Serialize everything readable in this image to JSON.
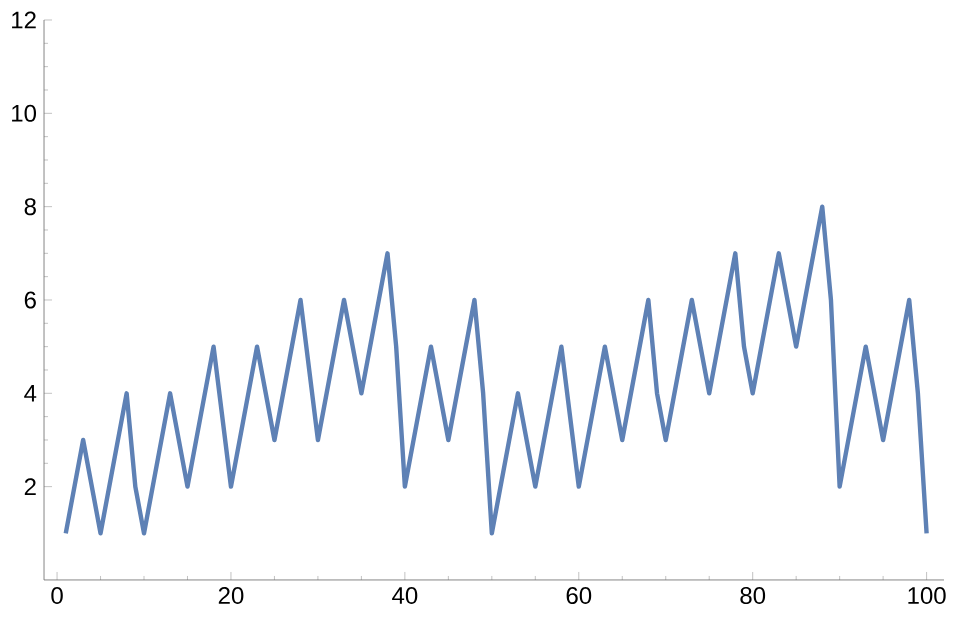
{
  "chart_data": {
    "type": "line",
    "color": "#5e81b5",
    "x": [
      1,
      3,
      5,
      8,
      9,
      10,
      13,
      15,
      18,
      20,
      23,
      25,
      28,
      30,
      33,
      35,
      38,
      39,
      40,
      43,
      45,
      48,
      49,
      50,
      53,
      55,
      58,
      60,
      63,
      65,
      68,
      69,
      70,
      73,
      75,
      78,
      79,
      80,
      83,
      85,
      88,
      89,
      90,
      93,
      95,
      98,
      99,
      100
    ],
    "values": [
      1,
      3,
      1,
      4,
      2,
      1,
      4,
      2,
      5,
      2,
      5,
      3,
      6,
      3,
      6,
      4,
      7,
      5,
      2,
      5,
      3,
      6,
      4,
      1,
      4,
      2,
      5,
      2,
      5,
      3,
      6,
      4,
      3,
      6,
      4,
      7,
      5,
      4,
      7,
      5,
      8,
      6,
      2,
      5,
      3,
      6,
      4,
      1
    ],
    "xlim": [
      -1.5,
      102
    ],
    "ylim": [
      0,
      12
    ],
    "xticks": [
      0,
      20,
      40,
      60,
      80,
      100
    ],
    "yticks": [
      2,
      4,
      6,
      8,
      10,
      12
    ],
    "marker": "none",
    "line_style": "solid",
    "grid": false
  }
}
